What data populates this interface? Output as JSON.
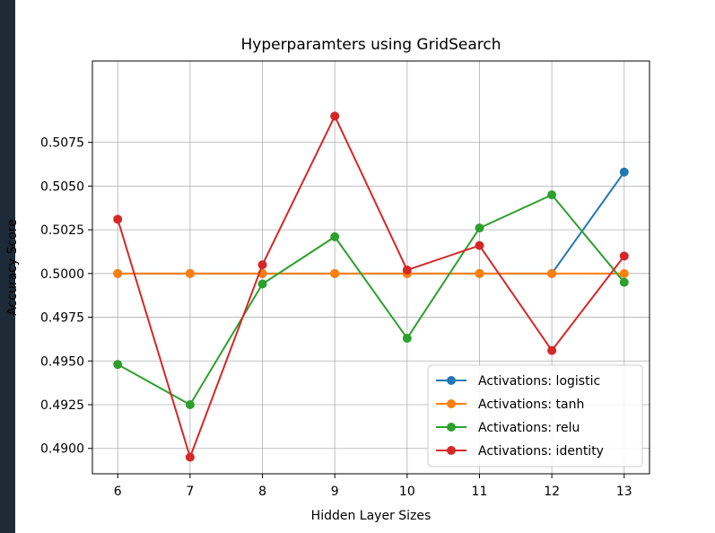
{
  "chart_data": {
    "type": "line",
    "title": "Hyperparamters using GridSearch",
    "xlabel": "Hidden Layer Sizes",
    "ylabel": "Accuracy Score",
    "x": [
      6,
      7,
      8,
      9,
      10,
      11,
      12,
      13
    ],
    "xlim": [
      5.65,
      13.35
    ],
    "ylim": [
      0.48855,
      0.51215
    ],
    "yticks": [
      "0.4900",
      "0.4925",
      "0.4950",
      "0.4975",
      "0.5000",
      "0.5025",
      "0.5050",
      "0.5075"
    ],
    "xticks": [
      "6",
      "7",
      "8",
      "9",
      "10",
      "11",
      "12",
      "13"
    ],
    "grid": true,
    "legend": "lower right",
    "series": [
      {
        "name": "Activations: logistic",
        "color": "#1f77b4",
        "values": [
          0.5,
          0.5,
          0.5,
          0.5,
          0.5,
          0.5,
          0.5,
          0.5058
        ]
      },
      {
        "name": "Activations: tanh",
        "color": "#ff7f0e",
        "values": [
          0.5,
          0.5,
          0.5,
          0.5,
          0.5,
          0.5,
          0.5,
          0.5
        ]
      },
      {
        "name": "Activations: relu",
        "color": "#2ca02c",
        "values": [
          0.4948,
          0.4925,
          0.4994,
          0.5021,
          0.4963,
          0.5026,
          0.5045,
          0.4995
        ]
      },
      {
        "name": "Activations: identity",
        "color": "#d62728",
        "values": [
          0.5031,
          0.4895,
          0.5005,
          0.509,
          0.5002,
          0.5016,
          0.4956,
          0.501
        ]
      }
    ]
  }
}
